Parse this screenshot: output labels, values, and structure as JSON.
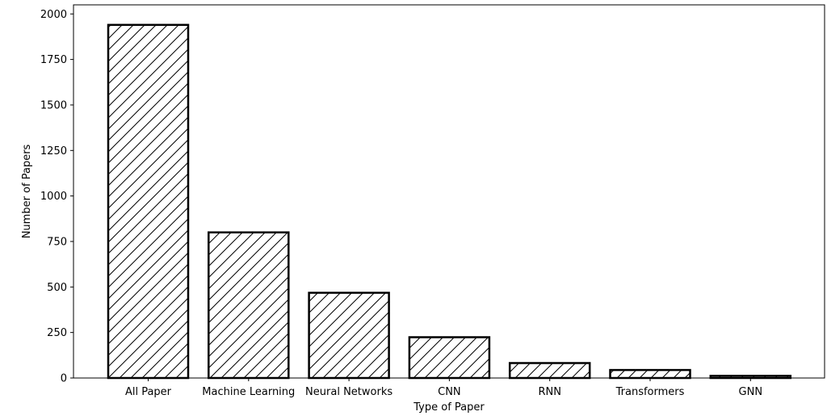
{
  "chart_data": {
    "type": "bar",
    "title": "",
    "xlabel": "Type of Paper",
    "ylabel": "Number of Papers",
    "categories": [
      "All Paper",
      "Machine Learning",
      "Neural Networks",
      "CNN",
      "RNN",
      "Transformers",
      "GNN"
    ],
    "values": [
      1940,
      800,
      468,
      224,
      82,
      44,
      12
    ],
    "ylim": [
      0,
      2050
    ],
    "yticks": [
      0,
      250,
      500,
      750,
      1000,
      1250,
      1500,
      1750,
      2000
    ],
    "grid": false,
    "bar_fill": "#ffffff",
    "bar_edge": "#000000",
    "hatch": "/"
  }
}
